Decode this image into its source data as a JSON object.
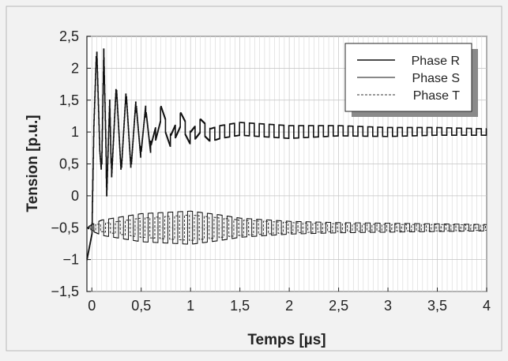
{
  "chart_data": {
    "type": "line",
    "title": "",
    "xlabel": "Temps [µs]",
    "ylabel": "Tension [p.u.]",
    "xlim": [
      -0.05,
      4.0
    ],
    "ylim": [
      -1.5,
      2.5
    ],
    "x_ticks": [
      0,
      0.5,
      1,
      1.5,
      2,
      2.5,
      3,
      3.5,
      4
    ],
    "x_tick_labels": [
      "0",
      "0,5",
      "1",
      "1,5",
      "2",
      "2,5",
      "3",
      "3,5",
      "4"
    ],
    "y_ticks": [
      -1.5,
      -1,
      -0.5,
      0,
      0.5,
      1,
      1.5,
      2,
      2.5
    ],
    "y_tick_labels": [
      "−1,5",
      "−1",
      "−0,5",
      "0",
      "0,5",
      "1",
      "1,5",
      "2",
      "2,5"
    ],
    "grid": true,
    "legend": "top-right",
    "series": [
      {
        "name": "Phase R",
        "x": [
          -0.05,
          0,
          0.02,
          0.05,
          0.08,
          0.1,
          0.12,
          0.15,
          0.18,
          0.2,
          0.25,
          0.3,
          0.35,
          0.4,
          0.45,
          0.5,
          0.55,
          0.6,
          0.7,
          0.8,
          0.9,
          1.0,
          1.1,
          1.2,
          1.3,
          1.5,
          2.0,
          2.5,
          3.0,
          3.5,
          4.0
        ],
        "y": [
          -1.0,
          -0.6,
          1.0,
          2.35,
          0.8,
          0.4,
          2.2,
          0.1,
          1.6,
          0.2,
          1.75,
          0.35,
          1.65,
          0.4,
          1.5,
          0.6,
          1.4,
          0.7,
          1.3,
          0.85,
          1.2,
          0.9,
          1.1,
          0.95,
          1.0,
          1.05,
          1.0,
          1.02,
          1.0,
          1.01,
          1.0
        ],
        "envelope_amplitude": [
          0,
          0,
          0.1,
          0.1,
          0.1,
          0.1,
          0.1,
          0.1,
          0.1,
          0.1,
          0.1,
          0.1,
          0.1,
          0.1,
          0.1,
          0.1,
          0.1,
          0.1,
          0.1,
          0.1,
          0.1,
          0.1,
          0.1,
          0.1,
          0.1,
          0.1,
          0.1,
          0.08,
          0.07,
          0.06,
          0.05
        ]
      },
      {
        "name": "Phase S",
        "x": [
          -0.05,
          0,
          0.1,
          0.5,
          1.0,
          1.3,
          1.5,
          2.0,
          2.5,
          3.0,
          3.5,
          4.0
        ],
        "y": [
          -0.5,
          -0.5,
          -0.5,
          -0.5,
          -0.5,
          -0.5,
          -0.5,
          -0.5,
          -0.5,
          -0.5,
          -0.5,
          -0.5
        ],
        "envelope_amplitude": [
          0,
          0.05,
          0.12,
          0.22,
          0.26,
          0.2,
          0.15,
          0.1,
          0.08,
          0.07,
          0.06,
          0.05
        ]
      },
      {
        "name": "Phase T",
        "x": [
          -0.05,
          0,
          0.5,
          1.0,
          1.5,
          2.0,
          2.5,
          3.0,
          3.5,
          4.0
        ],
        "y": [
          -0.5,
          -0.5,
          -0.5,
          -0.5,
          -0.5,
          -0.5,
          -0.5,
          -0.5,
          -0.5,
          -0.5
        ],
        "envelope_amplitude": [
          0,
          0.04,
          0.15,
          0.2,
          0.12,
          0.08,
          0.06,
          0.05,
          0.05,
          0.04
        ]
      }
    ]
  }
}
